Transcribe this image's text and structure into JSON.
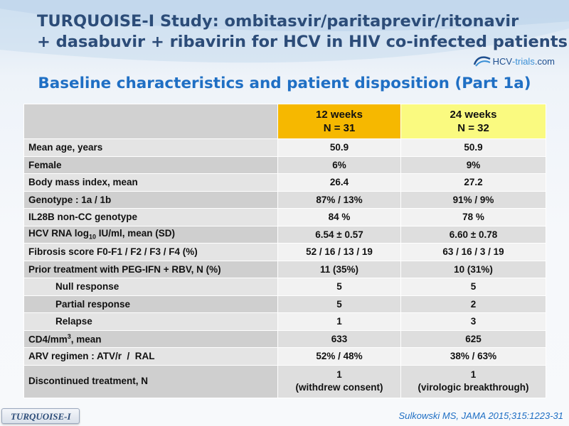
{
  "header": {
    "title_line1": "TURQUOISE-I Study: ombitasvir/paritaprevir/ritonavir",
    "title_line2": "+ dasabuvir + ribavirin for HCV in HIV co-infected patients",
    "logo": {
      "part1": "HCV",
      "part2": "-trials",
      "part3": ".com",
      "icon": "hcv-trials-logo-icon"
    },
    "subtitle": "Baseline characteristics and patient disposition (Part 1a)"
  },
  "table": {
    "columns": [
      {
        "line1": "12 weeks",
        "line2": "N = 31",
        "color": "#f6b800"
      },
      {
        "line1": "24 weeks",
        "line2": "N = 32",
        "color": "#fafa80"
      }
    ],
    "rows": [
      {
        "label": "Mean age, years",
        "c12": "50.9",
        "c24": "50.9"
      },
      {
        "label": "Female",
        "c12": "6%",
        "c24": "9%"
      },
      {
        "label": "Body mass index, mean",
        "c12": "26.4",
        "c24": "27.2"
      },
      {
        "label": "Genotype : 1a / 1b",
        "c12": "87% / 13%",
        "c24": "91% / 9%"
      },
      {
        "label": "IL28B non-CC genotype",
        "c12": "84 %",
        "c24": "78 %"
      },
      {
        "label_pre": "HCV RNA log",
        "label_sub": "10",
        "label_post": " IU/ml, mean (SD)",
        "c12": "6.54 ± 0.57",
        "c24": "6.60 ± 0.78"
      },
      {
        "label": "Fibrosis score F0-F1 / F2 / F3 / F4 (%)",
        "c12": "52 / 16 / 13 / 19",
        "c24": "63 / 16 / 3 / 19"
      },
      {
        "label": "Prior treatment with PEG-IFN + RBV, N (%)",
        "c12": "11 (35%)",
        "c24": "10 (31%)"
      },
      {
        "label": "Null response",
        "c12": "5",
        "c24": "5"
      },
      {
        "label": "Partial response",
        "c12": "5",
        "c24": "2"
      },
      {
        "label": "Relapse",
        "c12": "1",
        "c24": "3"
      },
      {
        "label_pre": "CD4/mm",
        "label_sup": "3",
        "label_post": ", mean",
        "c12": "633",
        "c24": "625"
      },
      {
        "label": "ARV regimen : ATV/r  /  RAL",
        "c12": "52% / 48%",
        "c24": "38% / 63%"
      },
      {
        "label": "Discontinued treatment, N",
        "c12_line1": "1",
        "c12_line2": "(withdrew consent)",
        "c24_line1": "1",
        "c24_line2": "(virologic breakthrough)"
      }
    ]
  },
  "footer": {
    "badge": "TURQUOISE-I",
    "citation": "Sulkowski MS, JAMA 2015;315:1223-31"
  },
  "colors": {
    "title": "#2c4c78",
    "subtitle": "#1f6fc4",
    "col12": "#f6b800",
    "col24": "#fafa80"
  }
}
